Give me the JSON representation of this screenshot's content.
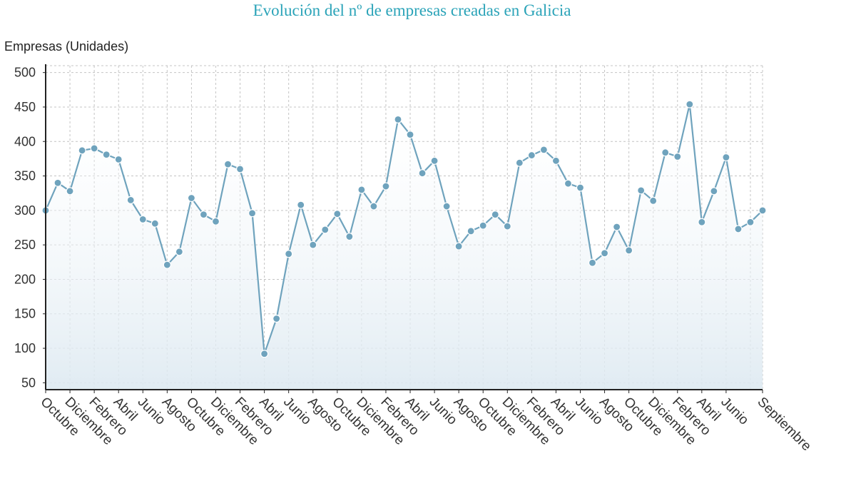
{
  "title": "Evolución del nº de empresas creadas en Galicia",
  "chart_data": {
    "type": "line",
    "title": "Evolución del nº de empresas creadas en Galicia",
    "ylabel": "Empresas (Unidades)",
    "xlabel": "",
    "ylim": [
      50,
      500
    ],
    "yticks": [
      50,
      100,
      150,
      200,
      250,
      300,
      350,
      400,
      450,
      500
    ],
    "grid": true,
    "x_tick_labels": [
      "Octubre",
      "Diciembre",
      "Febrero",
      "Abril",
      "Junio",
      "Agosto",
      "Octubre",
      "Diciembre",
      "Febrero",
      "Abril",
      "Junio",
      "Agosto",
      "Octubre",
      "Diciembre",
      "Febrero",
      "Abril",
      "Junio",
      "Agosto",
      "Octubre",
      "Diciembre",
      "Febrero",
      "Abril",
      "Junio",
      "Agosto",
      "Octubre",
      "Diciembre",
      "Febrero",
      "Abril",
      "Junio",
      "Septiembre"
    ],
    "x_tick_positions": [
      0,
      2,
      4,
      6,
      8,
      10,
      12,
      14,
      16,
      18,
      20,
      22,
      24,
      26,
      28,
      30,
      32,
      34,
      36,
      38,
      40,
      42,
      44,
      46,
      48,
      50,
      52,
      54,
      56,
      59
    ],
    "series": [
      {
        "values": [
          300,
          340,
          328,
          387,
          390,
          381,
          374,
          315,
          287,
          281,
          221,
          240,
          318,
          294,
          284,
          367,
          360,
          296,
          92,
          143,
          237,
          308,
          250,
          272,
          295,
          262,
          330,
          306,
          335,
          432,
          410,
          354,
          372,
          306,
          248,
          270,
          278,
          294,
          277,
          369,
          380,
          388,
          372,
          339,
          333,
          224,
          238,
          276,
          242,
          329,
          314,
          384,
          378,
          454,
          283,
          328,
          377,
          273,
          283,
          300
        ]
      }
    ],
    "colors": {
      "line": "#6fa3bd",
      "area_top": "#dde9f1",
      "grid": "#c4c4c4",
      "axis": "#222222"
    }
  }
}
